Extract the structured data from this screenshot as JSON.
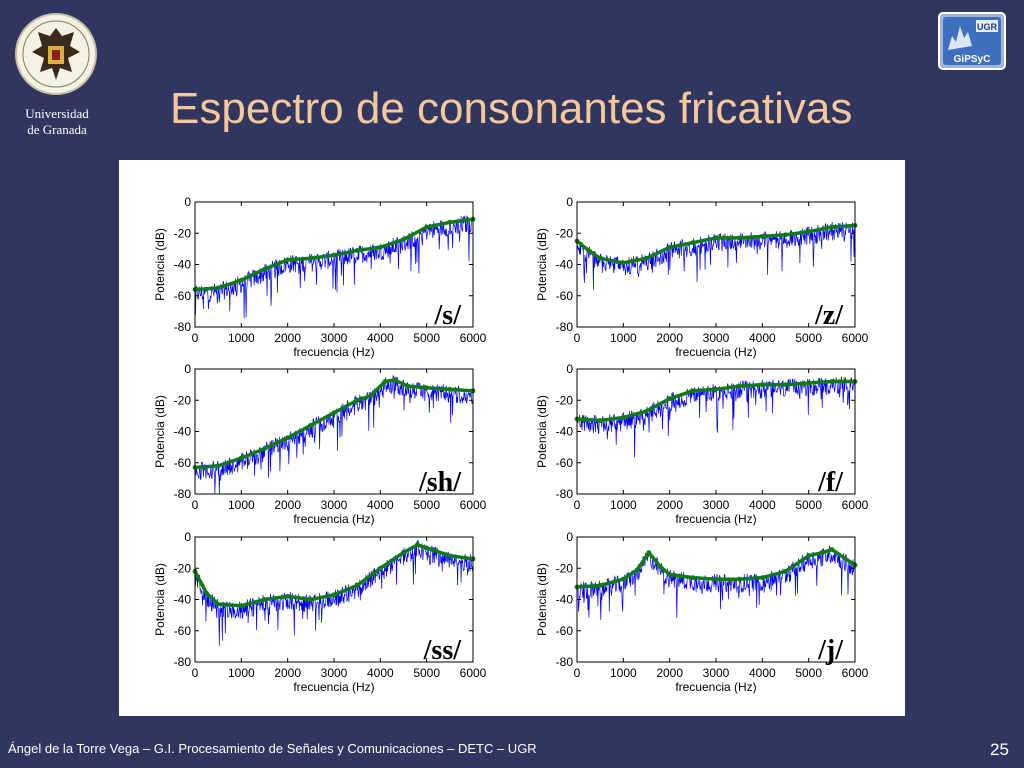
{
  "header": {
    "title": "Espectro de consonantes fricativas",
    "university": [
      "Universidad",
      "de Granada"
    ],
    "right_logo_text": [
      "UGR",
      "GiPSyC"
    ]
  },
  "footer": {
    "text": "Ángel de la Torre Vega – G.I. Procesamiento de Señales y Comunicaciones – DETC – UGR",
    "page_number": "25"
  },
  "colors": {
    "background": "#303660",
    "title": "#f4c89a",
    "spectrum": "#0000ee",
    "envelope": "#0f7a0f"
  },
  "chart_data": [
    {
      "type": "line",
      "label": "/s/",
      "xlabel": "frecuencia (Hz)",
      "ylabel": "Potencia (dB)",
      "xlim": [
        0,
        6000
      ],
      "ylim": [
        -80,
        0
      ],
      "xticks": [
        0,
        1000,
        2000,
        3000,
        4000,
        5000,
        6000
      ],
      "yticks": [
        0,
        -20,
        -40,
        -60,
        -80
      ],
      "series": [
        {
          "role": "envelope",
          "x": [
            0,
            500,
            1000,
            1500,
            2000,
            2500,
            3000,
            3500,
            4000,
            4500,
            5000,
            5500,
            6000
          ],
          "y": [
            -56,
            -55,
            -50,
            -43,
            -37,
            -36,
            -34,
            -31,
            -29,
            -24,
            -16,
            -13,
            -11
          ]
        }
      ]
    },
    {
      "type": "line",
      "label": "/z/",
      "xlabel": "frecuencia (Hz)",
      "ylabel": "Potencia (dB)",
      "xlim": [
        0,
        6000
      ],
      "ylim": [
        -80,
        0
      ],
      "xticks": [
        0,
        1000,
        2000,
        3000,
        4000,
        5000,
        6000
      ],
      "yticks": [
        0,
        -20,
        -40,
        -60,
        -80
      ],
      "series": [
        {
          "role": "envelope",
          "x": [
            0,
            250,
            500,
            1000,
            1500,
            2000,
            2500,
            3000,
            3500,
            4000,
            4500,
            5000,
            5500,
            6000
          ],
          "y": [
            -25,
            -31,
            -36,
            -39,
            -36,
            -29,
            -26,
            -23,
            -23,
            -22,
            -21,
            -19,
            -16,
            -15
          ]
        }
      ]
    },
    {
      "type": "line",
      "label": "/sh/",
      "xlabel": "frecuencia (Hz)",
      "ylabel": "Potencia (dB)",
      "xlim": [
        0,
        6000
      ],
      "ylim": [
        -80,
        0
      ],
      "xticks": [
        0,
        1000,
        2000,
        3000,
        4000,
        5000,
        6000
      ],
      "yticks": [
        0,
        -20,
        -40,
        -60,
        -80
      ],
      "series": [
        {
          "role": "envelope",
          "x": [
            0,
            500,
            1000,
            1500,
            2000,
            2500,
            3000,
            3500,
            3800,
            4100,
            4300,
            4600,
            5000,
            5500,
            6000
          ],
          "y": [
            -63,
            -62,
            -57,
            -51,
            -44,
            -36,
            -28,
            -20,
            -17,
            -8,
            -7,
            -11,
            -12,
            -13,
            -14
          ]
        }
      ]
    },
    {
      "type": "line",
      "label": "/f/",
      "xlabel": "frecuencia (Hz)",
      "ylabel": "Potencia (dB)",
      "xlim": [
        0,
        6000
      ],
      "ylim": [
        -80,
        0
      ],
      "xticks": [
        0,
        1000,
        2000,
        3000,
        4000,
        5000,
        6000
      ],
      "yticks": [
        0,
        -20,
        -40,
        -60,
        -80
      ],
      "series": [
        {
          "role": "envelope",
          "x": [
            0,
            500,
            1000,
            1500,
            2000,
            2500,
            3000,
            3500,
            4000,
            4500,
            5000,
            5500,
            6000
          ],
          "y": [
            -32,
            -33,
            -31,
            -27,
            -19,
            -14,
            -13,
            -11,
            -10,
            -10,
            -9,
            -8,
            -8
          ]
        }
      ]
    },
    {
      "type": "line",
      "label": "/ss/",
      "xlabel": "frecuencia (Hz)",
      "ylabel": "Potencia (dB)",
      "xlim": [
        0,
        6000
      ],
      "ylim": [
        -80,
        0
      ],
      "xticks": [
        0,
        1000,
        2000,
        3000,
        4000,
        5000,
        6000
      ],
      "yticks": [
        0,
        -20,
        -40,
        -60,
        -80
      ],
      "series": [
        {
          "role": "envelope",
          "x": [
            0,
            250,
            500,
            1000,
            1500,
            2000,
            2500,
            3000,
            3500,
            4000,
            4500,
            4800,
            5000,
            5500,
            6000
          ],
          "y": [
            -22,
            -36,
            -43,
            -44,
            -40,
            -38,
            -40,
            -37,
            -31,
            -20,
            -10,
            -5,
            -7,
            -12,
            -14
          ]
        }
      ]
    },
    {
      "type": "line",
      "label": "/j/",
      "xlabel": "frecuencia (Hz)",
      "ylabel": "Potencia (dB)",
      "xlim": [
        0,
        6000
      ],
      "ylim": [
        -80,
        0
      ],
      "xticks": [
        0,
        1000,
        2000,
        3000,
        4000,
        5000,
        6000
      ],
      "yticks": [
        0,
        -20,
        -40,
        -60,
        -80
      ],
      "series": [
        {
          "role": "envelope",
          "x": [
            0,
            500,
            1000,
            1300,
            1550,
            1800,
            2000,
            2500,
            3000,
            3500,
            4000,
            4500,
            5000,
            5300,
            5500,
            6000
          ],
          "y": [
            -32,
            -31,
            -27,
            -21,
            -10,
            -19,
            -24,
            -26,
            -27,
            -27,
            -26,
            -22,
            -12,
            -10,
            -8,
            -18
          ]
        }
      ]
    }
  ]
}
